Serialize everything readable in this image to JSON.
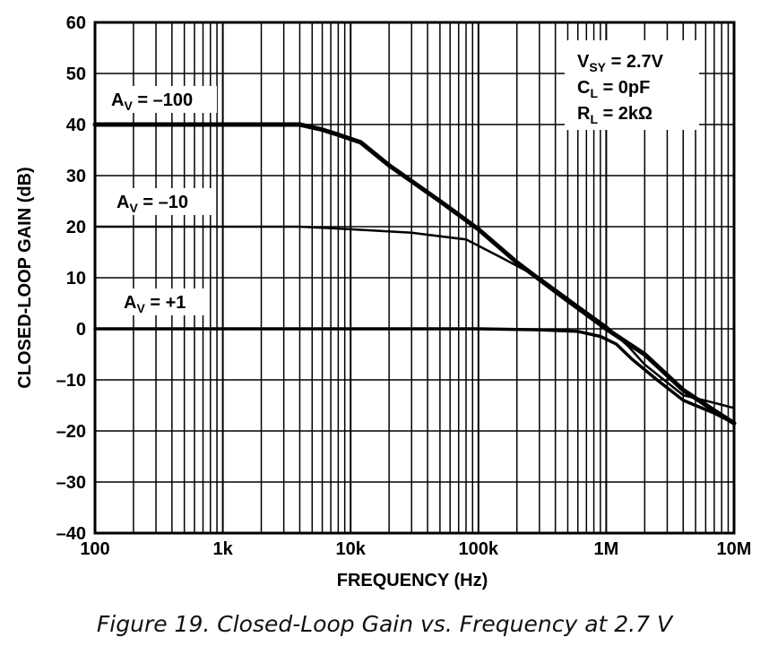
{
  "chart_data": {
    "type": "line",
    "xscale": "log",
    "xlabel": "FREQUENCY (Hz)",
    "ylabel": "CLOSED-LOOP GAIN (dB)",
    "xlim": [
      100,
      10000000
    ],
    "ylim": [
      -40,
      60
    ],
    "x_ticks": [
      {
        "value": 100,
        "label": "100"
      },
      {
        "value": 1000,
        "label": "1k"
      },
      {
        "value": 10000,
        "label": "10k"
      },
      {
        "value": 100000,
        "label": "100k"
      },
      {
        "value": 1000000,
        "label": "1M"
      },
      {
        "value": 10000000,
        "label": "10M"
      }
    ],
    "y_ticks": [
      {
        "value": 60,
        "label": "60"
      },
      {
        "value": 50,
        "label": "50"
      },
      {
        "value": 40,
        "label": "40"
      },
      {
        "value": 30,
        "label": "30"
      },
      {
        "value": 20,
        "label": "20"
      },
      {
        "value": 10,
        "label": "10"
      },
      {
        "value": 0,
        "label": "0"
      },
      {
        "value": -10,
        "label": "–10"
      },
      {
        "value": -20,
        "label": "–20"
      },
      {
        "value": -30,
        "label": "–30"
      },
      {
        "value": -40,
        "label": "–40"
      }
    ],
    "grid": true,
    "conditions": {
      "vsy": {
        "label": "V",
        "sub": "SY",
        "value": " = 2.7V"
      },
      "cl": {
        "label": "C",
        "sub": "L",
        "value": " = 0pF"
      },
      "rl": {
        "label": "R",
        "sub": "L",
        "value": " = 2kΩ"
      }
    },
    "series": [
      {
        "name": "AV = –100",
        "label_main": "A",
        "label_sub": "V",
        "label_rest": " = –100",
        "stroke": 5,
        "points": [
          [
            100,
            40
          ],
          [
            4000,
            40
          ],
          [
            6000,
            39
          ],
          [
            8000,
            38
          ],
          [
            12000,
            36.5
          ],
          [
            20000,
            32
          ],
          [
            50000,
            25
          ],
          [
            100000,
            19.5
          ],
          [
            200000,
            13
          ],
          [
            500000,
            5.5
          ],
          [
            1000000,
            0
          ],
          [
            2000000,
            -5
          ],
          [
            4000000,
            -12
          ],
          [
            7000000,
            -16
          ],
          [
            10000000,
            -18.5
          ]
        ]
      },
      {
        "name": "AV = –10",
        "label_main": "A",
        "label_sub": "V",
        "label_rest": " = –10",
        "stroke": 2.5,
        "points": [
          [
            100,
            20
          ],
          [
            4000,
            20
          ],
          [
            10000,
            19.5
          ],
          [
            30000,
            18.8
          ],
          [
            80000,
            17.5
          ],
          [
            150000,
            14
          ],
          [
            300000,
            10
          ],
          [
            600000,
            4.5
          ],
          [
            1000000,
            0.5
          ],
          [
            1500000,
            -3.5
          ],
          [
            2000000,
            -7
          ],
          [
            3000000,
            -10.5
          ],
          [
            4000000,
            -13
          ],
          [
            7000000,
            -14.5
          ],
          [
            10000000,
            -15.5
          ]
        ]
      },
      {
        "name": "AV = +1",
        "label_main": "A",
        "label_sub": "V",
        "label_rest": " = +1",
        "stroke": 3.5,
        "points": [
          [
            100,
            0
          ],
          [
            100000,
            0
          ],
          [
            300000,
            -0.2
          ],
          [
            600000,
            -0.5
          ],
          [
            900000,
            -1.5
          ],
          [
            1200000,
            -3
          ],
          [
            1600000,
            -6
          ],
          [
            2500000,
            -10
          ],
          [
            4000000,
            -14
          ],
          [
            7000000,
            -16.5
          ],
          [
            10000000,
            -18.5
          ]
        ]
      }
    ]
  },
  "caption": "Figure 19. Closed-Loop Gain vs. Frequency at 2.7 V"
}
